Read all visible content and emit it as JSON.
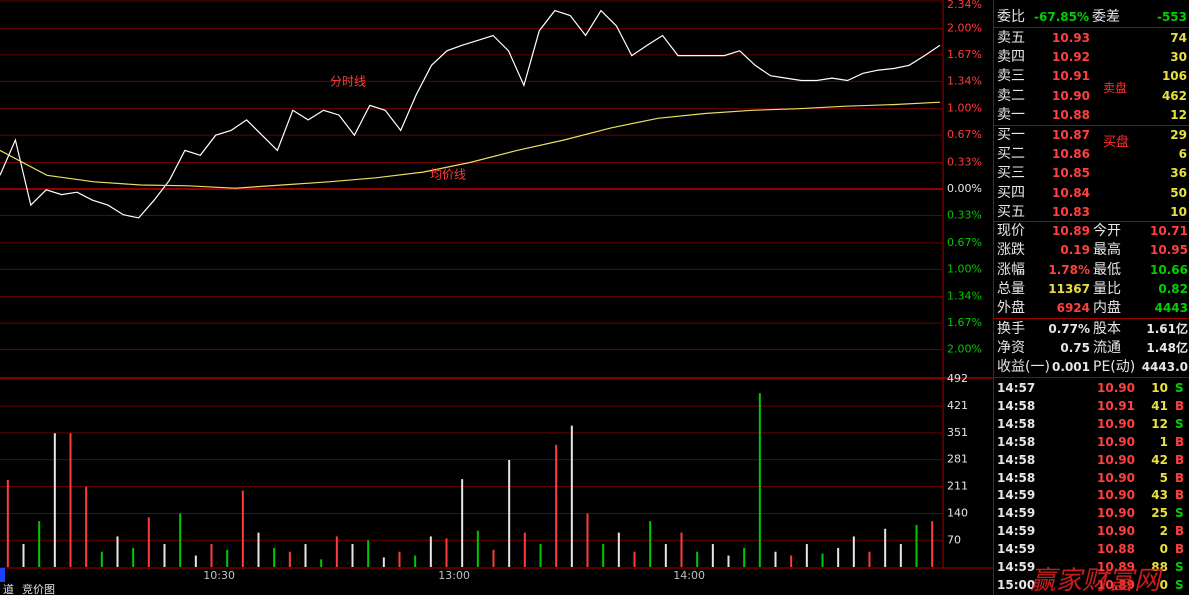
{
  "chart_data": [
    {
      "type": "line",
      "annotations": {
        "0": "分时线",
        "1": "均价线"
      },
      "series": [
        {
          "name": "分时线",
          "color": "#ffffff",
          "values": [
            0.17,
            0.61,
            -0.2,
            -0.01,
            -0.07,
            -0.04,
            -0.14,
            -0.2,
            -0.32,
            -0.36,
            -0.14,
            0.11,
            0.48,
            0.42,
            0.67,
            0.73,
            0.86,
            0.67,
            0.48,
            0.98,
            0.86,
            0.98,
            0.92,
            0.67,
            1.04,
            0.98,
            0.73,
            1.17,
            1.54,
            1.72,
            1.79,
            1.85,
            1.91,
            1.72,
            1.29,
            1.97,
            2.22,
            2.16,
            1.91,
            2.22,
            2.03,
            1.66,
            1.79,
            1.91,
            1.66,
            1.66,
            1.66,
            1.66,
            1.72,
            1.54,
            1.41,
            1.38,
            1.35,
            1.35,
            1.38,
            1.35,
            1.44,
            1.48,
            1.5,
            1.54,
            1.66,
            1.79
          ]
        },
        {
          "name": "均价线",
          "color": "#e8e060",
          "values": [
            0.48,
            0.17,
            0.09,
            0.05,
            0.04,
            0.01,
            0.05,
            0.09,
            0.14,
            0.21,
            0.33,
            0.48,
            0.61,
            0.76,
            0.88,
            0.94,
            0.98,
            1.0,
            1.03,
            1.05,
            1.08
          ]
        }
      ],
      "ylim": [
        -2.34,
        2.34
      ],
      "yticks": [
        {
          "value": 2.34,
          "label": "2.34%"
        },
        {
          "value": 2.0,
          "label": "2.00%"
        },
        {
          "value": 1.67,
          "label": "1.67%"
        },
        {
          "value": 1.34,
          "label": "1.34%"
        },
        {
          "value": 1.0,
          "label": "1.00%"
        },
        {
          "value": 0.67,
          "label": "0.67%"
        },
        {
          "value": 0.33,
          "label": "0.33%"
        },
        {
          "value": 0,
          "label": "0.00%"
        },
        {
          "value": -0.33,
          "label": "0.33%"
        },
        {
          "value": -0.67,
          "label": "0.67%"
        },
        {
          "value": -1.0,
          "label": "1.00%"
        },
        {
          "value": -1.34,
          "label": "1.34%"
        },
        {
          "value": -1.67,
          "label": "1.67%"
        },
        {
          "value": -2.0,
          "label": "2.00%"
        }
      ],
      "grid": true
    },
    {
      "type": "bar",
      "xlim": [
        0,
        240
      ],
      "xticks": [
        {
          "value": 60,
          "label": "10:30"
        },
        {
          "value": 120,
          "label": "13:00"
        },
        {
          "value": 180,
          "label": "14:00"
        }
      ],
      "ylim": [
        0,
        492
      ],
      "yticks": [
        70,
        140,
        211,
        281,
        351,
        421,
        492
      ],
      "grid": true,
      "values": [
        228,
        60,
        120,
        350,
        350,
        210,
        40,
        80,
        50,
        130,
        60,
        140,
        30,
        60,
        45,
        200,
        90,
        50,
        40,
        60,
        20,
        80,
        60,
        70,
        25,
        40,
        30,
        80,
        75,
        230,
        95,
        45,
        280,
        90,
        60,
        320,
        370,
        140,
        60,
        90,
        40,
        120,
        60,
        90,
        40,
        60,
        30,
        50,
        455,
        40,
        30,
        60,
        35,
        50,
        80,
        40,
        100,
        60,
        110,
        120
      ],
      "colors": [
        "#ff3c3c",
        "#e6e6e6",
        "#00c800",
        "#e6e6e6",
        "#ff3c3c",
        "#ff3c3c",
        "#00c800",
        "#e6e6e6",
        "#00c800",
        "#ff3c3c",
        "#e6e6e6",
        "#00c800",
        "#e6e6e6",
        "#ff3c3c",
        "#00c800",
        "#ff3c3c",
        "#e6e6e6",
        "#00c800",
        "#ff3c3c",
        "#e6e6e6",
        "#00c800",
        "#ff3c3c",
        "#e6e6e6",
        "#00c800",
        "#e6e6e6",
        "#ff3c3c",
        "#00c800",
        "#e6e6e6",
        "#ff3c3c",
        "#e6e6e6",
        "#00c800",
        "#ff3c3c",
        "#e6e6e6",
        "#ff3c3c",
        "#00c800",
        "#ff3c3c",
        "#e6e6e6",
        "#ff3c3c",
        "#00c800",
        "#e6e6e6",
        "#ff3c3c",
        "#00c800",
        "#e6e6e6",
        "#ff3c3c",
        "#00c800",
        "#e6e6e6",
        "#e6e6e6",
        "#00c800",
        "#00c800",
        "#e6e6e6",
        "#ff3c3c",
        "#e6e6e6",
        "#00c800",
        "#e6e6e6",
        "#e6e6e6",
        "#ff3c3c",
        "#e6e6e6",
        "#e6e6e6",
        "#00c800",
        "#ff3c3c"
      ]
    }
  ],
  "quote_panel": {
    "ratio": [
      {
        "label": "委比",
        "value": "-67.85%",
        "color": "#00d000"
      },
      {
        "label": "委差",
        "value": "-553",
        "color": "#00d000"
      }
    ],
    "ask_tag": "卖盘",
    "bid_tag": "买盘",
    "asks": [
      {
        "label": "卖五",
        "price": "10.93",
        "volume": "74"
      },
      {
        "label": "卖四",
        "price": "10.92",
        "volume": "30"
      },
      {
        "label": "卖三",
        "price": "10.91",
        "volume": "106"
      },
      {
        "label": "卖二",
        "price": "10.90",
        "volume": "462"
      },
      {
        "label": "卖一",
        "price": "10.88",
        "volume": "12"
      }
    ],
    "bids": [
      {
        "label": "买一",
        "price": "10.87",
        "volume": "29"
      },
      {
        "label": "买二",
        "price": "10.86",
        "volume": "6"
      },
      {
        "label": "买三",
        "price": "10.85",
        "volume": "36"
      },
      {
        "label": "买四",
        "price": "10.84",
        "volume": "50"
      },
      {
        "label": "买五",
        "price": "10.83",
        "volume": "10"
      }
    ],
    "stats": [
      [
        {
          "label": "现价",
          "value": "10.89",
          "color": "#ff4040"
        },
        {
          "label": "今开",
          "value": "10.71",
          "color": "#ff4040"
        }
      ],
      [
        {
          "label": "涨跌",
          "value": "0.19",
          "color": "#ff4040"
        },
        {
          "label": "最高",
          "value": "10.95",
          "color": "#ff4040"
        }
      ],
      [
        {
          "label": "涨幅",
          "value": "1.78%",
          "color": "#ff4040"
        },
        {
          "label": "最低",
          "value": "10.66",
          "color": "#00d000"
        }
      ],
      [
        {
          "label": "总量",
          "value": "11367",
          "color": "#e8e040"
        },
        {
          "label": "量比",
          "value": "0.82",
          "color": "#00d000"
        }
      ],
      [
        {
          "label": "外盘",
          "value": "6924",
          "color": "#ff4040"
        },
        {
          "label": "内盘",
          "value": "4443",
          "color": "#00d000"
        }
      ],
      [
        {
          "label": "换手",
          "value": "0.77%",
          "color": "#e6e6e6"
        },
        {
          "label": "股本",
          "value": "1.61亿",
          "color": "#e6e6e6"
        }
      ],
      [
        {
          "label": "净资",
          "value": "0.75",
          "color": "#e6e6e6"
        },
        {
          "label": "流通",
          "value": "1.48亿",
          "color": "#e6e6e6"
        }
      ],
      [
        {
          "label": "收益(一)",
          "value": "0.001",
          "color": "#e6e6e6"
        },
        {
          "label": "PE(动)",
          "value": "4443.0",
          "color": "#e6e6e6"
        }
      ]
    ],
    "trades": [
      {
        "time": "14:57",
        "price": "10.90",
        "volume": "10",
        "side": "S",
        "side_color": "#00d000"
      },
      {
        "time": "14:58",
        "price": "10.91",
        "volume": "41",
        "side": "B",
        "side_color": "#ff4040"
      },
      {
        "time": "14:58",
        "price": "10.90",
        "volume": "12",
        "side": "S",
        "side_color": "#00d000"
      },
      {
        "time": "14:58",
        "price": "10.90",
        "volume": "1",
        "side": "B",
        "side_color": "#ff4040"
      },
      {
        "time": "14:58",
        "price": "10.90",
        "volume": "42",
        "side": "B",
        "side_color": "#ff4040"
      },
      {
        "time": "14:58",
        "price": "10.90",
        "volume": "5",
        "side": "B",
        "side_color": "#ff4040"
      },
      {
        "time": "14:59",
        "price": "10.90",
        "volume": "43",
        "side": "B",
        "side_color": "#ff4040"
      },
      {
        "time": "14:59",
        "price": "10.90",
        "volume": "25",
        "side": "S",
        "side_color": "#00d000"
      },
      {
        "time": "14:59",
        "price": "10.90",
        "volume": "2",
        "side": "B",
        "side_color": "#ff4040"
      },
      {
        "time": "14:59",
        "price": "10.88",
        "volume": "0",
        "side": "B",
        "side_color": "#ff4040"
      },
      {
        "time": "14:59",
        "price": "10.89",
        "volume": "88",
        "side": "S",
        "side_color": "#00d000"
      },
      {
        "time": "15:00",
        "price": "10.89",
        "volume": "0",
        "side": "S",
        "side_color": "#00d000"
      }
    ]
  },
  "tabs": [
    "道",
    "竞价图"
  ],
  "watermark": "赢家财富网"
}
